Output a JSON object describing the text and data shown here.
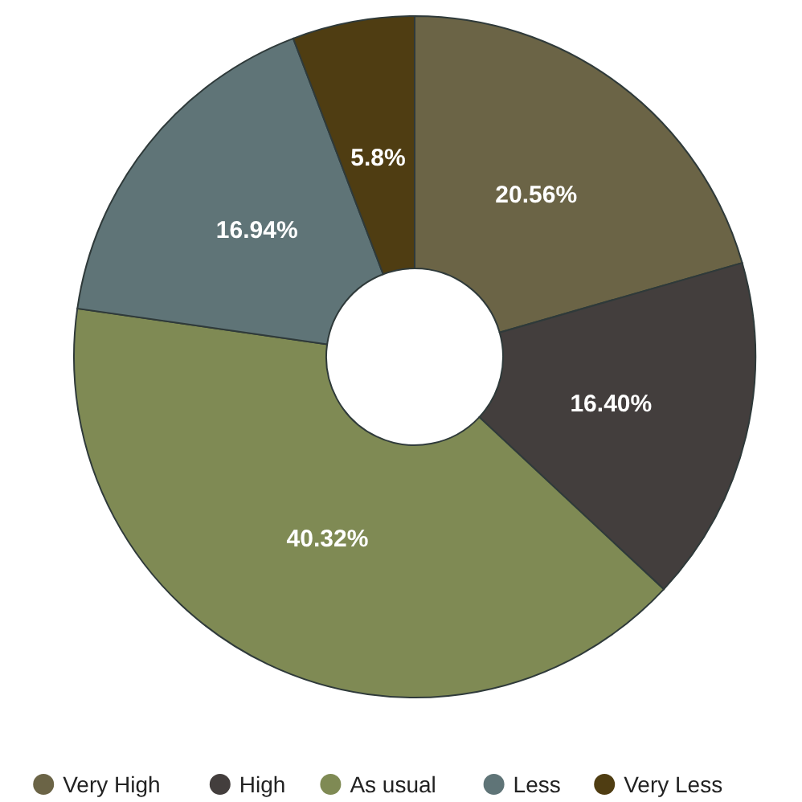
{
  "chart_data": {
    "type": "donut",
    "categories": [
      "Very High",
      "High",
      "As usual",
      "Less",
      "Very Less"
    ],
    "values": [
      20.56,
      16.4,
      40.32,
      16.94,
      5.8
    ],
    "colors": [
      "#6b6446",
      "#433e3d",
      "#7f8a54",
      "#5f7477",
      "#4f3d12"
    ],
    "value_labels": [
      "20.56%",
      "16.40%",
      "40.32%",
      "16.94%",
      "5.8%"
    ],
    "legend": "bottom"
  }
}
